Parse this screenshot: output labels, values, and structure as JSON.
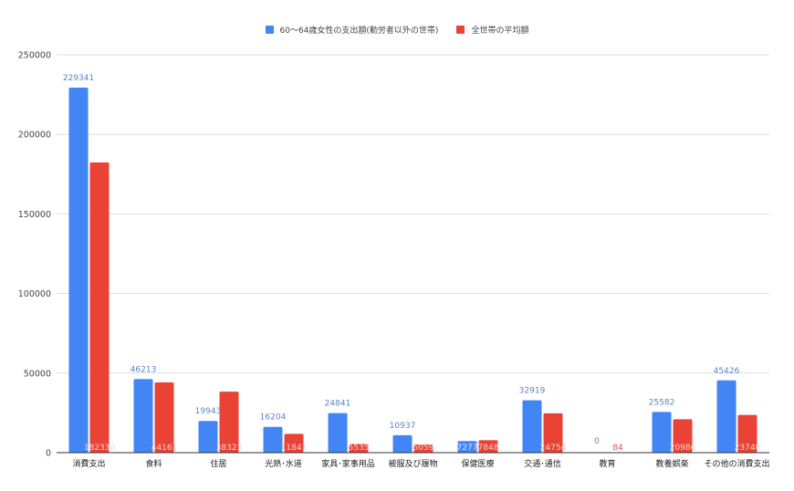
{
  "legend": {
    "series1": "60～64歳女性の支出額(勤労者以外の世帯)",
    "series2": "全世帯の平均額"
  },
  "colors": {
    "series1": "#4285f4",
    "series2": "#ea4335",
    "grid": "#dddddd",
    "axis": "#333333"
  },
  "chart_data": {
    "type": "bar",
    "title": "",
    "xlabel": "",
    "ylabel": "",
    "ylim": [
      0,
      250000
    ],
    "yticks": [
      0,
      50000,
      100000,
      150000,
      200000,
      250000
    ],
    "grid": true,
    "legend_position": "top",
    "categories": [
      "消費支出",
      "食料",
      "住居",
      "光熱･水道",
      "家具･家事用品",
      "被服及び履物",
      "保健医療",
      "交通･通信",
      "教育",
      "教養娯楽",
      "その他の消費支出"
    ],
    "series": [
      {
        "name": "60～64歳女性の支出額(勤労者以外の世帯)",
        "color": "#4285f4",
        "values": [
          229341,
          46213,
          19943,
          16204,
          24841,
          10937,
          7277,
          32919,
          0,
          25582,
          45426
        ]
      },
      {
        "name": "全世帯の平均額",
        "color": "#ea4335",
        "values": [
          182330,
          44161,
          38323,
          11841,
          5535,
          5059,
          7848,
          24754,
          84,
          20986,
          23740
        ]
      }
    ]
  }
}
